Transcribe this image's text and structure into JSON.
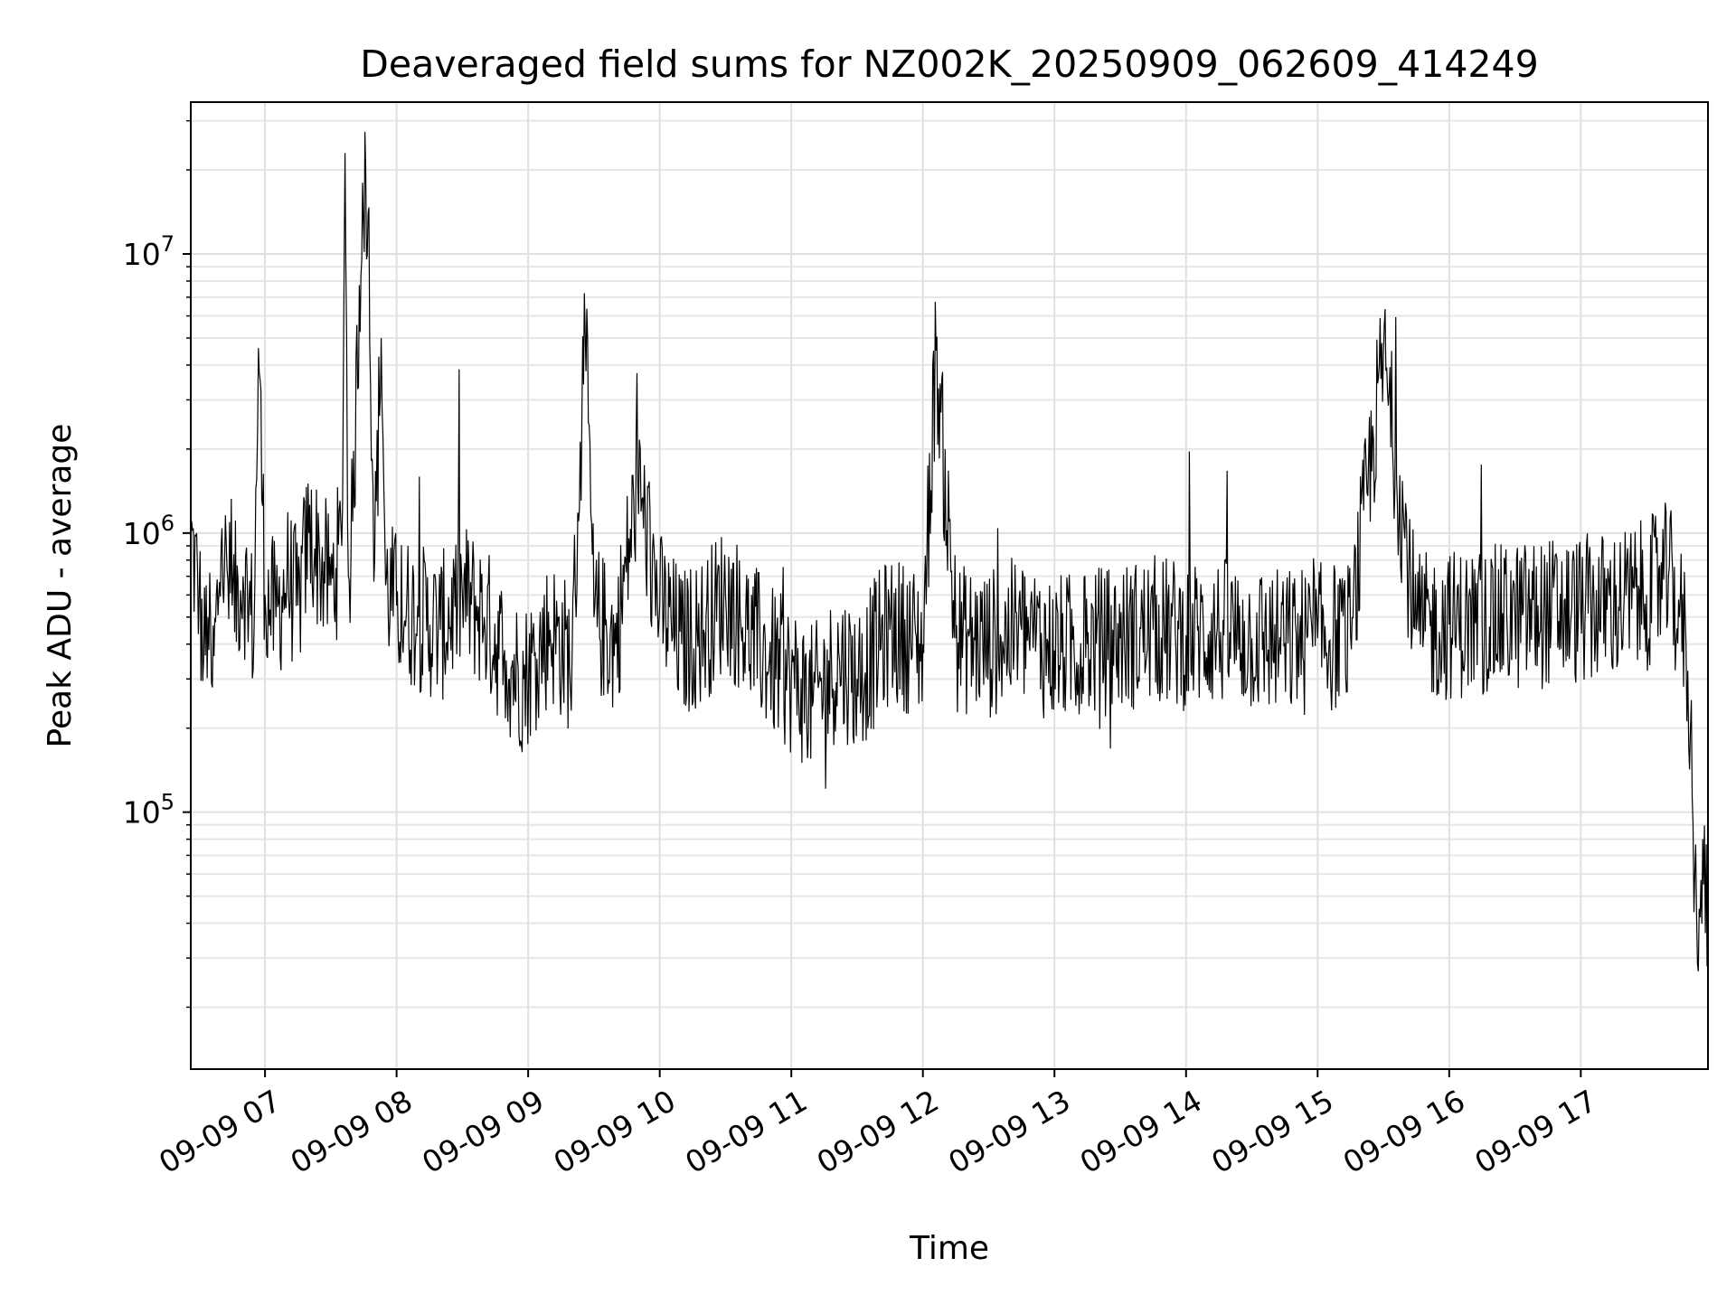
{
  "chart_data": {
    "type": "line",
    "title": "Deaveraged field sums for NZ002K_20250909_062609_414249",
    "xlabel": "Time",
    "ylabel": "Peak ADU - average",
    "yscale": "log",
    "xlim": [
      "2025-09-09T06:26:09",
      "2025-09-09T17:58:00"
    ],
    "ylim": [
      12000,
      35000000
    ],
    "grid": true,
    "line_color": "#000000",
    "x_ticks": [
      {
        "value": "2025-09-09T07:00:00",
        "label": "09-09 07"
      },
      {
        "value": "2025-09-09T08:00:00",
        "label": "09-09 08"
      },
      {
        "value": "2025-09-09T09:00:00",
        "label": "09-09 09"
      },
      {
        "value": "2025-09-09T10:00:00",
        "label": "09-09 10"
      },
      {
        "value": "2025-09-09T11:00:00",
        "label": "09-09 11"
      },
      {
        "value": "2025-09-09T12:00:00",
        "label": "09-09 12"
      },
      {
        "value": "2025-09-09T13:00:00",
        "label": "09-09 13"
      },
      {
        "value": "2025-09-09T14:00:00",
        "label": "09-09 14"
      },
      {
        "value": "2025-09-09T15:00:00",
        "label": "09-09 15"
      },
      {
        "value": "2025-09-09T16:00:00",
        "label": "09-09 16"
      },
      {
        "value": "2025-09-09T17:00:00",
        "label": "09-09 17"
      }
    ],
    "y_ticks": [
      {
        "value": 100000,
        "base": "10",
        "exp": "5"
      },
      {
        "value": 1000000,
        "base": "10",
        "exp": "6"
      },
      {
        "value": 10000000,
        "base": "10",
        "exp": "7"
      }
    ],
    "series": [
      {
        "x": [
          "2025-09-09T06:26:09",
          "2025-09-09T06:30:00",
          "2025-09-09T06:32:00",
          "2025-09-09T06:34:00",
          "2025-09-09T06:36:00",
          "2025-09-09T06:40:00",
          "2025-09-09T06:45:00",
          "2025-09-09T06:50:00",
          "2025-09-09T06:55:00",
          "2025-09-09T06:57:00",
          "2025-09-09T07:00:00",
          "2025-09-09T07:05:00",
          "2025-09-09T07:10:00",
          "2025-09-09T07:15:00",
          "2025-09-09T07:20:00",
          "2025-09-09T07:25:00",
          "2025-09-09T07:30:00",
          "2025-09-09T07:35:00",
          "2025-09-09T07:36:30",
          "2025-09-09T07:38:00",
          "2025-09-09T07:40:00",
          "2025-09-09T07:44:30",
          "2025-09-09T07:47:00",
          "2025-09-09T07:50:00",
          "2025-09-09T07:53:00",
          "2025-09-09T07:55:00",
          "2025-09-09T08:00:00",
          "2025-09-09T08:10:00",
          "2025-09-09T08:20:00",
          "2025-09-09T08:30:00",
          "2025-09-09T08:40:00",
          "2025-09-09T08:50:00",
          "2025-09-09T08:58:00",
          "2025-09-09T09:10:00",
          "2025-09-09T09:20:00",
          "2025-09-09T09:26:00",
          "2025-09-09T09:30:00",
          "2025-09-09T09:40:00",
          "2025-09-09T09:50:00",
          "2025-09-09T10:00:00",
          "2025-09-09T10:10:00",
          "2025-09-09T10:20:00",
          "2025-09-09T10:30:00",
          "2025-09-09T10:40:00",
          "2025-09-09T10:50:00",
          "2025-09-09T11:00:00",
          "2025-09-09T11:10:00",
          "2025-09-09T11:22:00",
          "2025-09-09T11:30:00",
          "2025-09-09T11:45:00",
          "2025-09-09T12:00:00",
          "2025-09-09T12:06:00",
          "2025-09-09T12:15:00",
          "2025-09-09T12:30:00",
          "2025-09-09T12:45:00",
          "2025-09-09T13:00:00",
          "2025-09-09T13:15:00",
          "2025-09-09T13:30:00",
          "2025-09-09T13:45:00",
          "2025-09-09T14:00:00",
          "2025-09-09T14:15:00",
          "2025-09-09T14:30:00",
          "2025-09-09T14:45:00",
          "2025-09-09T15:00:00",
          "2025-09-09T15:15:00",
          "2025-09-09T15:30:00",
          "2025-09-09T15:45:00",
          "2025-09-09T16:00:00",
          "2025-09-09T16:15:00",
          "2025-09-09T16:30:00",
          "2025-09-09T16:45:00",
          "2025-09-09T17:00:00",
          "2025-09-09T17:15:00",
          "2025-09-09T17:30:00",
          "2025-09-09T17:40:00",
          "2025-09-09T17:45:00",
          "2025-09-09T17:48:00",
          "2025-09-09T17:50:00",
          "2025-09-09T17:52:00",
          "2025-09-09T17:54:00",
          "2025-09-09T17:56:00",
          "2025-09-09T17:58:00"
        ],
        "y": [
          950000,
          600000,
          350000,
          500000,
          280000,
          900000,
          550000,
          700000,
          450000,
          4600000,
          600000,
          500000,
          700000,
          550000,
          1000000,
          800000,
          650000,
          900000,
          23000000,
          700000,
          1100000,
          18000000,
          14000000,
          800000,
          5000000,
          650000,
          550000,
          500000,
          450000,
          600000,
          500000,
          350000,
          300000,
          450000,
          350000,
          5200000,
          500000,
          400000,
          1500000,
          550000,
          400000,
          450000,
          600000,
          450000,
          350000,
          300000,
          250000,
          350000,
          300000,
          450000,
          400000,
          4500000,
          420000,
          400000,
          450000,
          380000,
          400000,
          420000,
          450000,
          430000,
          440000,
          420000,
          400000,
          420000,
          430000,
          4300000,
          450000,
          470000,
          480000,
          500000,
          520000,
          530000,
          550000,
          600000,
          700000,
          500000,
          400000,
          200000,
          60000,
          45000,
          55000,
          50000
        ]
      }
    ]
  }
}
